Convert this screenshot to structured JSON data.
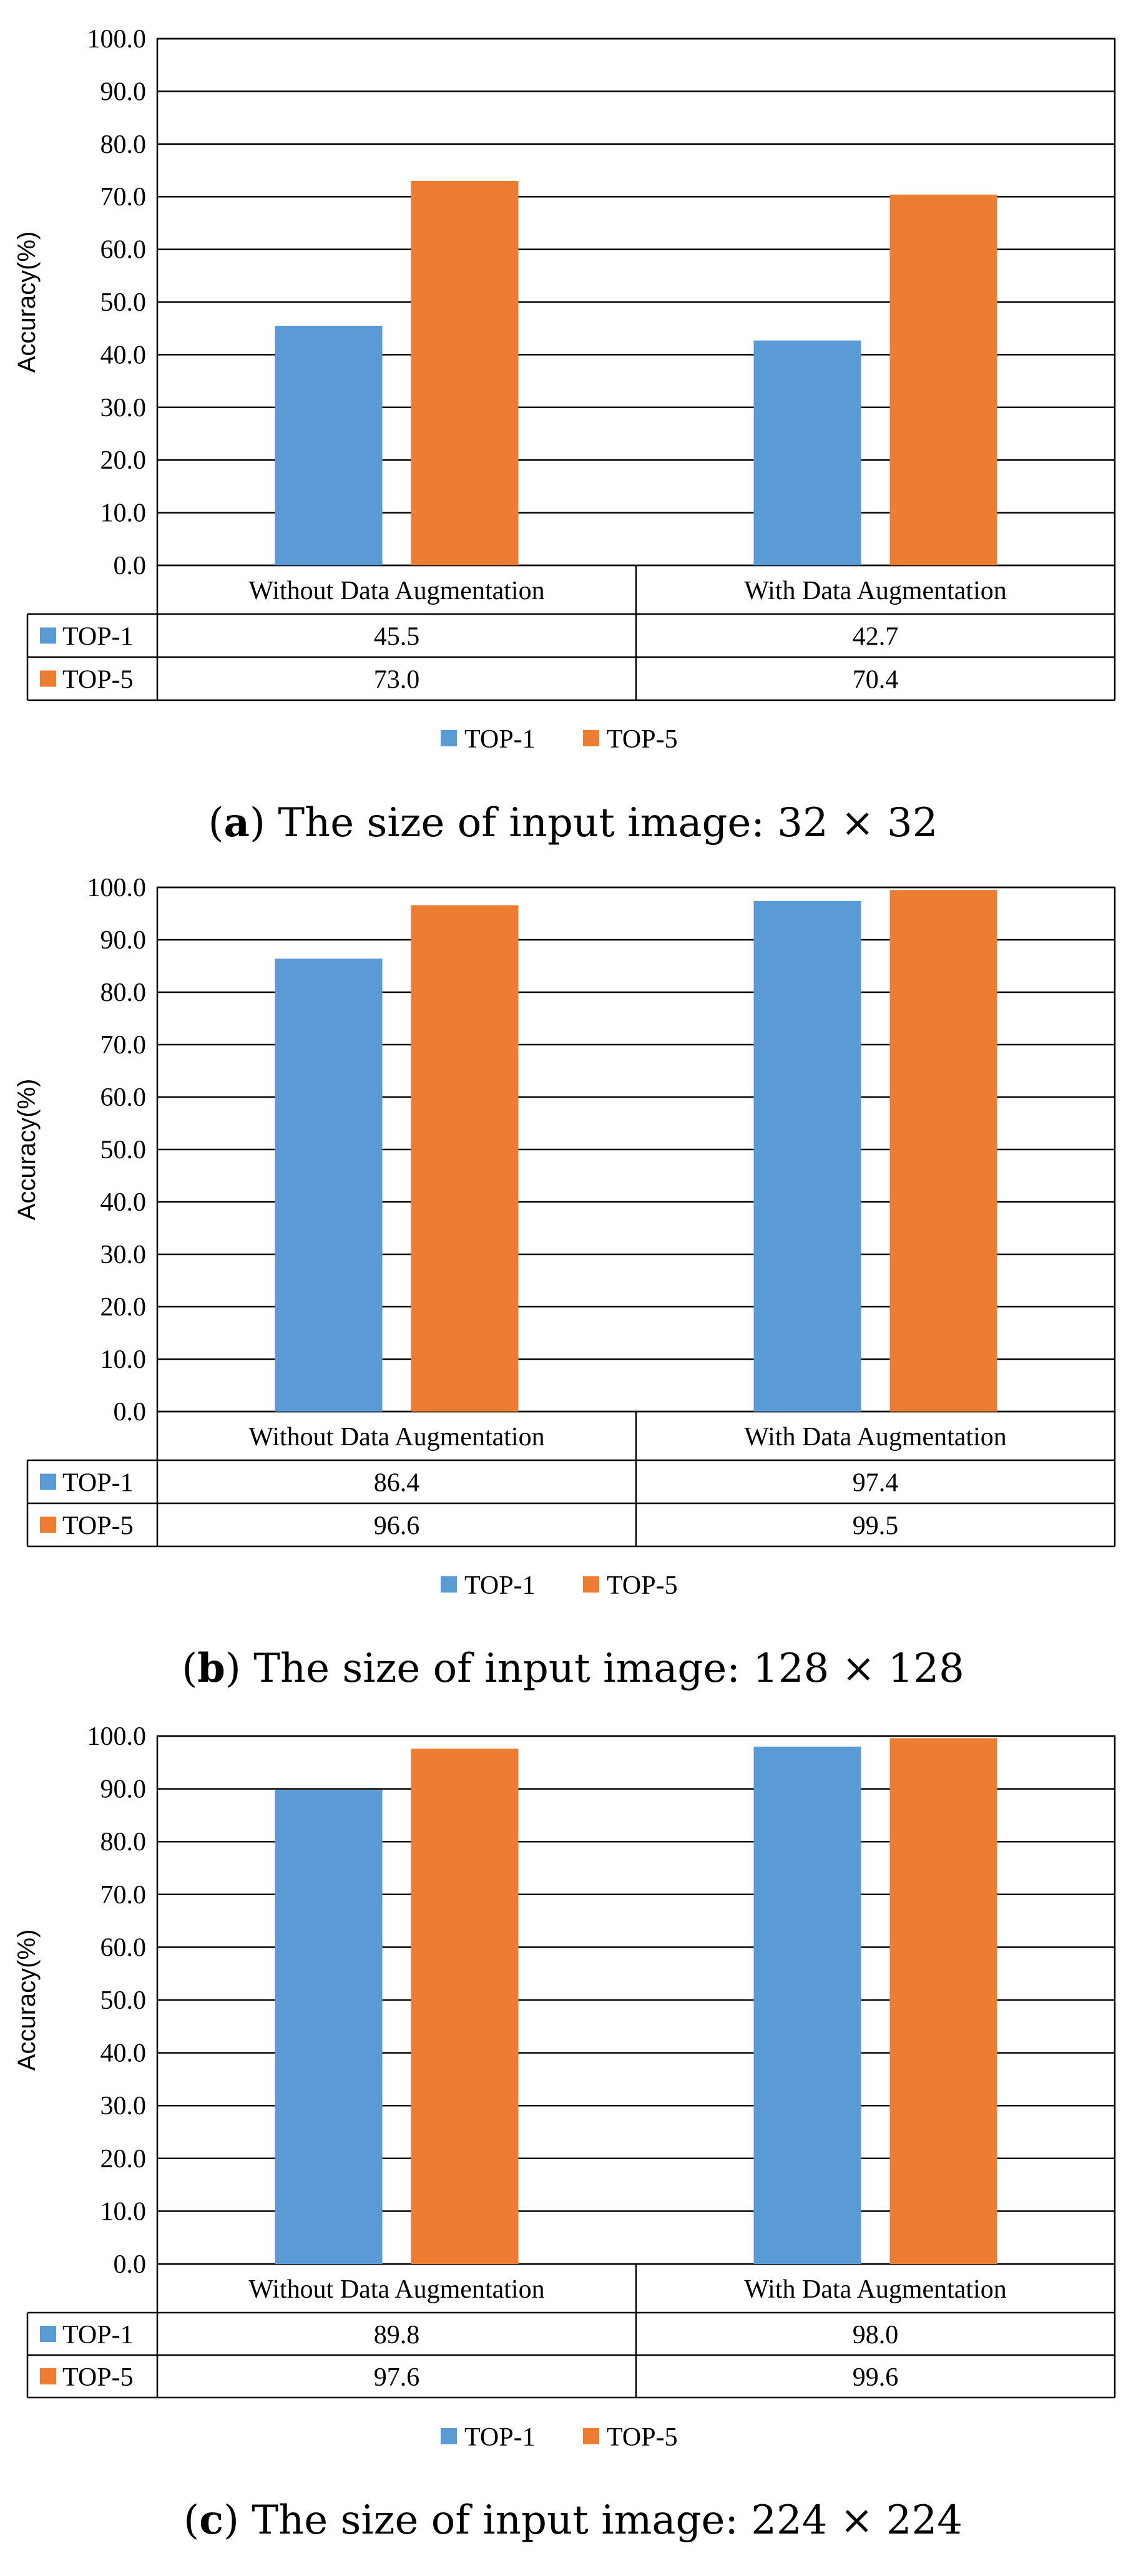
{
  "chart_data": [
    {
      "type": "bar",
      "caption": {
        "prefix": "(",
        "letter": "a",
        "text": ") The size of input image: 32 × 32"
      },
      "categories": [
        "Without Data Augmentation",
        "With Data Augmentation"
      ],
      "ylabel": "Accuracy(%)",
      "ylim": [
        0,
        100
      ],
      "ytick_step": 10,
      "ytick_labels": [
        "0.0",
        "10.0",
        "20.0",
        "30.0",
        "40.0",
        "50.0",
        "60.0",
        "70.0",
        "80.0",
        "90.0",
        "100.0"
      ],
      "grid": true,
      "legend_position": "bottom",
      "series": [
        {
          "name": "TOP-1",
          "color": "#5B9BD5",
          "values": [
            45.5,
            42.7
          ],
          "value_labels": [
            "45.5",
            "42.7"
          ]
        },
        {
          "name": "TOP-5",
          "color": "#ED7D31",
          "values": [
            73.0,
            70.4
          ],
          "value_labels": [
            "73.0",
            "70.4"
          ]
        }
      ]
    },
    {
      "type": "bar",
      "caption": {
        "prefix": "(",
        "letter": "b",
        "text": ") The size of input image: 128 × 128"
      },
      "categories": [
        "Without Data Augmentation",
        "With Data Augmentation"
      ],
      "ylabel": "Accuracy(%)",
      "ylim": [
        0,
        100
      ],
      "ytick_step": 10,
      "ytick_labels": [
        "0.0",
        "10.0",
        "20.0",
        "30.0",
        "40.0",
        "50.0",
        "60.0",
        "70.0",
        "80.0",
        "90.0",
        "100.0"
      ],
      "grid": true,
      "legend_position": "bottom",
      "series": [
        {
          "name": "TOP-1",
          "color": "#5B9BD5",
          "values": [
            86.4,
            97.4
          ],
          "value_labels": [
            "86.4",
            "97.4"
          ]
        },
        {
          "name": "TOP-5",
          "color": "#ED7D31",
          "values": [
            96.6,
            99.5
          ],
          "value_labels": [
            "96.6",
            "99.5"
          ]
        }
      ]
    },
    {
      "type": "bar",
      "caption": {
        "prefix": "(",
        "letter": "c",
        "text": ") The size of input image: 224 × 224"
      },
      "categories": [
        "Without Data Augmentation",
        "With Data Augmentation"
      ],
      "ylabel": "Accuracy(%)",
      "ylim": [
        0,
        100
      ],
      "ytick_step": 10,
      "ytick_labels": [
        "0.0",
        "10.0",
        "20.0",
        "30.0",
        "40.0",
        "50.0",
        "60.0",
        "70.0",
        "80.0",
        "90.0",
        "100.0"
      ],
      "grid": true,
      "legend_position": "bottom",
      "series": [
        {
          "name": "TOP-1",
          "color": "#5B9BD5",
          "values": [
            89.8,
            98.0
          ],
          "value_labels": [
            "89.8",
            "98.0"
          ]
        },
        {
          "name": "TOP-5",
          "color": "#ED7D31",
          "values": [
            97.6,
            99.6
          ],
          "value_labels": [
            "97.6",
            "99.6"
          ]
        }
      ]
    }
  ]
}
